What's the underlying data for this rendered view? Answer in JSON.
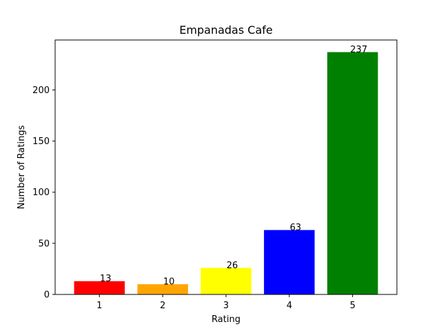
{
  "chart_data": {
    "type": "bar",
    "title": "Empanadas Cafe",
    "xlabel": "Rating",
    "ylabel": "Number of Ratings",
    "categories": [
      "1",
      "2",
      "3",
      "4",
      "5"
    ],
    "values": [
      13,
      10,
      26,
      63,
      237
    ],
    "data_labels": [
      "13",
      "10",
      "26",
      "63",
      "237"
    ],
    "colors": [
      "#ff0000",
      "#ffa500",
      "#ffff00",
      "#0000ff",
      "#008000"
    ],
    "ylim": [
      0,
      248.85
    ],
    "yticks": [
      0,
      50,
      100,
      150,
      200
    ],
    "grid": false,
    "legend": "none"
  }
}
